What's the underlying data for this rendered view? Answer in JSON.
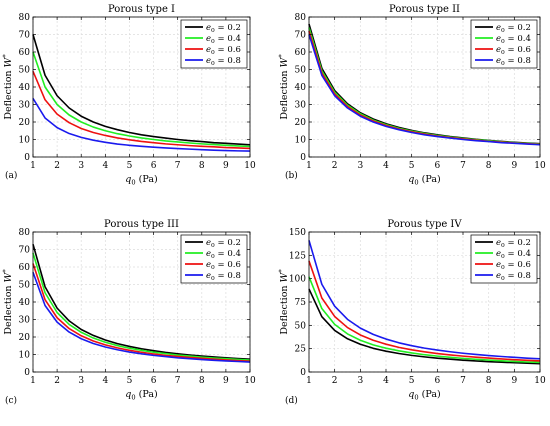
{
  "figure": {
    "colors": {
      "black": "#000000",
      "green": "#22ee22",
      "red": "#ee1111",
      "blue": "#1a1aee",
      "grid": "#dddddd"
    }
  },
  "chart_data": [
    {
      "type": "line",
      "panel_label": "(a)",
      "title": "Porous type I",
      "xlabel": "q0 (Pa)",
      "ylabel": "Deflection W*",
      "xlim": [
        1,
        10
      ],
      "ylim": [
        0,
        80
      ],
      "xticks": [
        1,
        2,
        3,
        4,
        5,
        6,
        7,
        8,
        9,
        10
      ],
      "yticks": [
        0,
        10,
        20,
        30,
        40,
        50,
        60,
        70,
        80
      ],
      "grid": true,
      "legend_position": "top-right",
      "x": [
        1,
        1.5,
        2,
        2.5,
        3,
        3.5,
        4,
        4.5,
        5,
        5.5,
        6,
        6.5,
        7,
        7.5,
        8,
        8.5,
        9,
        9.5,
        10
      ],
      "series": [
        {
          "name": "e0 = 0.2",
          "color": "#000000",
          "values": [
            70,
            46.7,
            35,
            28,
            23.3,
            20,
            17.5,
            15.6,
            14,
            12.7,
            11.7,
            10.8,
            10,
            9.3,
            8.8,
            8.2,
            7.8,
            7.4,
            7
          ]
        },
        {
          "name": "e0 = 0.4",
          "color": "#22ee22",
          "values": [
            60,
            40,
            30,
            24,
            20,
            17.1,
            15,
            13.3,
            12,
            10.9,
            10,
            9.2,
            8.6,
            8,
            7.5,
            7.1,
            6.7,
            6.3,
            6
          ]
        },
        {
          "name": "e0 = 0.6",
          "color": "#ee1111",
          "values": [
            49,
            32.7,
            24.5,
            19.6,
            16.3,
            14,
            12.3,
            10.9,
            9.8,
            8.9,
            8.2,
            7.5,
            7,
            6.5,
            6.1,
            5.8,
            5.4,
            5.2,
            4.9
          ]
        },
        {
          "name": "e0 = 0.8",
          "color": "#1a1aee",
          "values": [
            33.5,
            22.3,
            16.8,
            13.4,
            11.2,
            9.6,
            8.4,
            7.4,
            6.7,
            6.1,
            5.6,
            5.2,
            4.8,
            4.5,
            4.2,
            3.9,
            3.7,
            3.5,
            3.4
          ]
        }
      ]
    },
    {
      "type": "line",
      "panel_label": "(b)",
      "title": "Porous type II",
      "xlabel": "q0 (Pa)",
      "ylabel": "Deflection W*",
      "xlim": [
        1,
        10
      ],
      "ylim": [
        0,
        80
      ],
      "xticks": [
        1,
        2,
        3,
        4,
        5,
        6,
        7,
        8,
        9,
        10
      ],
      "yticks": [
        0,
        10,
        20,
        30,
        40,
        50,
        60,
        70,
        80
      ],
      "grid": true,
      "legend_position": "top-right",
      "x": [
        1,
        1.5,
        2,
        2.5,
        3,
        3.5,
        4,
        4.5,
        5,
        5.5,
        6,
        6.5,
        7,
        7.5,
        8,
        8.5,
        9,
        9.5,
        10
      ],
      "series": [
        {
          "name": "e0 = 0.2",
          "color": "#000000",
          "values": [
            76,
            50.7,
            38,
            30.4,
            25.3,
            21.7,
            19,
            16.9,
            15.2,
            13.8,
            12.7,
            11.7,
            10.9,
            10.1,
            9.5,
            8.9,
            8.4,
            8,
            7.6
          ]
        },
        {
          "name": "e0 = 0.4",
          "color": "#22ee22",
          "values": [
            74,
            49.3,
            37,
            29.6,
            24.7,
            21.1,
            18.5,
            16.4,
            14.8,
            13.5,
            12.3,
            11.4,
            10.6,
            9.9,
            9.3,
            8.7,
            8.2,
            7.8,
            7.4
          ]
        },
        {
          "name": "e0 = 0.6",
          "color": "#ee1111",
          "values": [
            72,
            48,
            36,
            28.8,
            24,
            20.6,
            18,
            16,
            14.4,
            13.1,
            12,
            11.1,
            10.3,
            9.6,
            9,
            8.5,
            8,
            7.6,
            7.2
          ]
        },
        {
          "name": "e0 = 0.8",
          "color": "#1a1aee",
          "values": [
            70,
            46.7,
            35,
            28,
            23.3,
            20,
            17.5,
            15.6,
            14,
            12.7,
            11.7,
            10.8,
            10,
            9.3,
            8.8,
            8.2,
            7.8,
            7.4,
            7
          ]
        }
      ]
    },
    {
      "type": "line",
      "panel_label": "(c)",
      "title": "Porous type III",
      "xlabel": "q0 (Pa)",
      "ylabel": "Deflection W*",
      "xlim": [
        1,
        10
      ],
      "ylim": [
        0,
        80
      ],
      "xticks": [
        1,
        2,
        3,
        4,
        5,
        6,
        7,
        8,
        9,
        10
      ],
      "yticks": [
        0,
        10,
        20,
        30,
        40,
        50,
        60,
        70,
        80
      ],
      "grid": true,
      "legend_position": "top-right",
      "x": [
        1,
        1.5,
        2,
        2.5,
        3,
        3.5,
        4,
        4.5,
        5,
        5.5,
        6,
        6.5,
        7,
        7.5,
        8,
        8.5,
        9,
        9.5,
        10
      ],
      "series": [
        {
          "name": "e0 = 0.2",
          "color": "#000000",
          "values": [
            73,
            48.7,
            36.5,
            29.2,
            24.3,
            20.9,
            18.3,
            16.2,
            14.6,
            13.3,
            12.2,
            11.2,
            10.4,
            9.7,
            9.1,
            8.6,
            8.1,
            7.7,
            7.3
          ]
        },
        {
          "name": "e0 = 0.4",
          "color": "#22ee22",
          "values": [
            68,
            45.3,
            34,
            27.2,
            22.7,
            19.4,
            17,
            15.1,
            13.6,
            12.4,
            11.3,
            10.5,
            9.7,
            9.1,
            8.5,
            8,
            7.6,
            7.2,
            6.8
          ]
        },
        {
          "name": "e0 = 0.6",
          "color": "#ee1111",
          "values": [
            62,
            41.3,
            31,
            24.8,
            20.7,
            17.7,
            15.5,
            13.8,
            12.4,
            11.3,
            10.3,
            9.5,
            8.9,
            8.3,
            7.8,
            7.3,
            6.9,
            6.5,
            6.2
          ]
        },
        {
          "name": "e0 = 0.8",
          "color": "#1a1aee",
          "values": [
            57,
            38,
            28.5,
            22.8,
            19,
            16.3,
            14.3,
            12.7,
            11.4,
            10.4,
            9.5,
            8.8,
            8.1,
            7.6,
            7.1,
            6.7,
            6.3,
            6,
            5.7
          ]
        }
      ]
    },
    {
      "type": "line",
      "panel_label": "(d)",
      "title": "Porous type IV",
      "xlabel": "q0 (Pa)",
      "ylabel": "Deflection W*",
      "xlim": [
        1,
        10
      ],
      "ylim": [
        0,
        150
      ],
      "xticks": [
        1,
        2,
        3,
        4,
        5,
        6,
        7,
        8,
        9,
        10
      ],
      "yticks": [
        0,
        25,
        50,
        75,
        100,
        125,
        150
      ],
      "grid": true,
      "legend_position": "top-right",
      "x": [
        1,
        1.5,
        2,
        2.5,
        3,
        3.5,
        4,
        4.5,
        5,
        5.5,
        6,
        6.5,
        7,
        7.5,
        8,
        8.5,
        9,
        9.5,
        10
      ],
      "series": [
        {
          "name": "e0 = 0.2",
          "color": "#000000",
          "values": [
            89,
            59.3,
            44.5,
            35.6,
            29.7,
            25.4,
            22.3,
            19.8,
            17.8,
            16.2,
            14.8,
            13.7,
            12.7,
            11.9,
            11.1,
            10.5,
            9.9,
            9.4,
            8.9
          ]
        },
        {
          "name": "e0 = 0.4",
          "color": "#22ee22",
          "values": [
            102,
            68,
            51,
            40.8,
            34,
            29.1,
            25.5,
            22.7,
            20.4,
            18.5,
            17,
            15.7,
            14.6,
            13.6,
            12.8,
            12,
            11.3,
            10.7,
            10.2
          ]
        },
        {
          "name": "e0 = 0.6",
          "color": "#ee1111",
          "values": [
            119,
            79.3,
            59.5,
            47.6,
            39.7,
            34,
            29.8,
            26.4,
            23.8,
            21.6,
            19.8,
            18.3,
            17,
            15.9,
            14.9,
            14,
            13.2,
            12.5,
            11.9
          ]
        },
        {
          "name": "e0 = 0.8",
          "color": "#1a1aee",
          "values": [
            141,
            94,
            70.5,
            56.4,
            47,
            40.3,
            35.3,
            31.3,
            28.2,
            25.6,
            23.5,
            21.7,
            20.1,
            18.8,
            17.6,
            16.6,
            15.7,
            14.8,
            14.1
          ]
        }
      ]
    }
  ]
}
